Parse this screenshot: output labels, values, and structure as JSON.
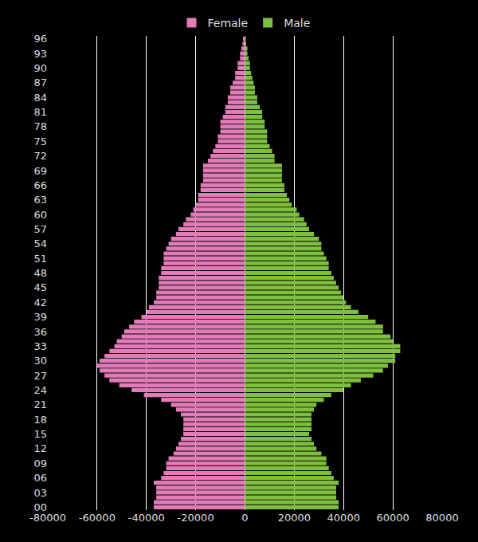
{
  "chart_data": {
    "type": "bar",
    "orientation": "horizontal",
    "grid": true,
    "legend": "top",
    "categories": [
      "00",
      null,
      null,
      "03",
      null,
      null,
      "06",
      null,
      null,
      "09",
      null,
      null,
      "12",
      null,
      null,
      "15",
      null,
      null,
      "18",
      null,
      null,
      "21",
      null,
      null,
      "24",
      null,
      null,
      "27",
      null,
      null,
      "30",
      null,
      null,
      "33",
      null,
      null,
      "36",
      null,
      null,
      "39",
      null,
      null,
      "42",
      null,
      null,
      "45",
      null,
      null,
      "48",
      null,
      null,
      "51",
      null,
      null,
      "54",
      null,
      null,
      "57",
      null,
      null,
      "60",
      null,
      null,
      "63",
      null,
      null,
      "66",
      null,
      null,
      "69",
      null,
      null,
      "72",
      null,
      null,
      "75",
      null,
      null,
      "78",
      null,
      null,
      "81",
      null,
      null,
      "84",
      null,
      null,
      "87",
      null,
      null,
      "90",
      null,
      null,
      "93",
      null,
      null,
      "96"
    ],
    "series": [
      {
        "name": "Female",
        "color": "#e27cb8",
        "values": [
          -37000,
          -37000,
          -36000,
          -36000,
          -36000,
          -37000,
          -34000,
          -33000,
          -32000,
          -32000,
          -31000,
          -29000,
          -28000,
          -27000,
          -26000,
          -25000,
          -25000,
          -25000,
          -25000,
          -26000,
          -28000,
          -30000,
          -34000,
          -41000,
          -46000,
          -51000,
          -55000,
          -57000,
          -59000,
          -60000,
          -59000,
          -57000,
          -55000,
          -53000,
          -52000,
          -50000,
          -49000,
          -47000,
          -45000,
          -42000,
          -40000,
          -39000,
          -37000,
          -36000,
          -36000,
          -35000,
          -35000,
          -35000,
          -34000,
          -34000,
          -33000,
          -33000,
          -33000,
          -32000,
          -31000,
          -30000,
          -28000,
          -27000,
          -25000,
          -24000,
          -22000,
          -21000,
          -20000,
          -19000,
          -19000,
          -18000,
          -18000,
          -17000,
          -17000,
          -17000,
          -17000,
          -15000,
          -14000,
          -13000,
          -12000,
          -11000,
          -11000,
          -10000,
          -10000,
          -10000,
          -9000,
          -8000,
          -8000,
          -7000,
          -7000,
          -6000,
          -6000,
          -5000,
          -4000,
          -4000,
          -3000,
          -3000,
          -2000,
          -2000,
          -1500,
          -1000,
          -800
        ]
      },
      {
        "name": "Male",
        "color": "#7fbf3f",
        "values": [
          38000,
          38000,
          37000,
          37000,
          37000,
          38000,
          36000,
          35000,
          34000,
          33000,
          33000,
          31000,
          29000,
          28000,
          27000,
          26000,
          27000,
          27000,
          27000,
          27000,
          28000,
          29000,
          32000,
          35000,
          40000,
          43000,
          47000,
          52000,
          56000,
          58000,
          61000,
          61000,
          63000,
          63000,
          60000,
          59000,
          56000,
          56000,
          53000,
          50000,
          46000,
          43000,
          41000,
          40000,
          39000,
          38000,
          37000,
          36000,
          35000,
          34000,
          34000,
          33000,
          32000,
          31000,
          31000,
          30000,
          28000,
          26000,
          25000,
          24000,
          22000,
          21000,
          19000,
          18000,
          17000,
          16000,
          16000,
          15000,
          15000,
          15000,
          15000,
          12000,
          12000,
          11000,
          10000,
          9000,
          9000,
          9000,
          8000,
          8000,
          7000,
          7000,
          6000,
          5000,
          5000,
          4000,
          4000,
          3500,
          3000,
          2500,
          2000,
          2000,
          1500,
          1000,
          1000,
          500,
          300
        ]
      }
    ],
    "xlim": [
      -80000,
      80000
    ],
    "xticks": [
      -80000,
      -60000,
      -40000,
      -20000,
      0,
      20000,
      40000,
      60000,
      80000
    ]
  }
}
